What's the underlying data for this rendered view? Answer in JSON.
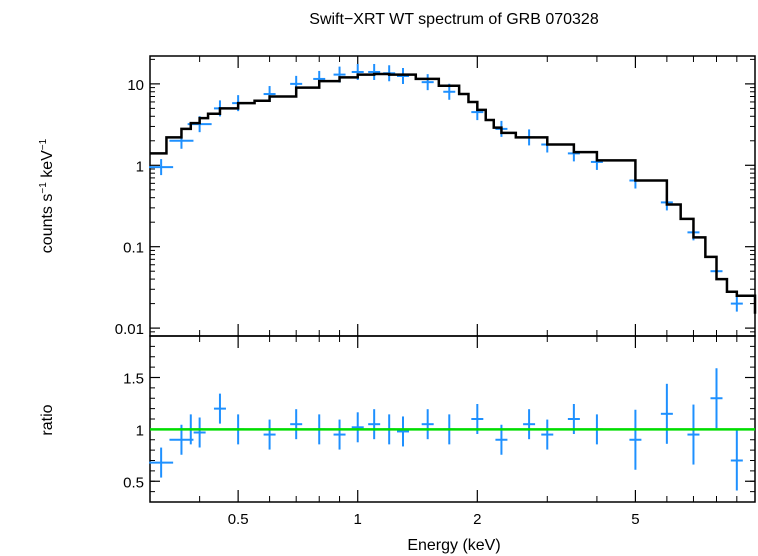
{
  "chart_data": [
    {
      "type": "scatter",
      "panel": "top",
      "title": "Swift−XRT WT spectrum of GRB 070328",
      "ylabel_main": "counts s",
      "ylabel_sup1": "−1",
      "ylabel_mid": " keV",
      "ylabel_sup2": "−1",
      "x_scale": "log",
      "y_scale": "log",
      "xlim": [
        0.3,
        10
      ],
      "ylim": [
        0.008,
        22
      ],
      "y_ticks": [
        "10",
        "1",
        "0.1",
        "0.01"
      ],
      "y_tick_values": [
        10,
        1,
        0.1,
        0.01
      ],
      "series": [
        {
          "kind": "data",
          "color": "#1e90ff",
          "x": [
            0.32,
            0.36,
            0.4,
            0.45,
            0.5,
            0.6,
            0.7,
            0.8,
            0.9,
            1.0,
            1.1,
            1.2,
            1.3,
            1.5,
            1.7,
            2.0,
            2.3,
            2.7,
            3.0,
            3.5,
            4.0,
            5.0,
            6.0,
            7.0,
            8.0,
            9.0
          ],
          "y": [
            0.95,
            2.0,
            3.2,
            5.0,
            5.8,
            7.5,
            10.0,
            11.5,
            13.0,
            14.0,
            14.0,
            13.5,
            12.5,
            10.5,
            8.0,
            4.5,
            2.8,
            2.2,
            1.8,
            1.4,
            1.1,
            0.65,
            0.35,
            0.15,
            0.05,
            0.02
          ]
        },
        {
          "kind": "model",
          "color": "#000000",
          "x": [
            0.3,
            0.33,
            0.36,
            0.38,
            0.4,
            0.42,
            0.45,
            0.5,
            0.55,
            0.6,
            0.7,
            0.8,
            0.9,
            1.0,
            1.1,
            1.2,
            1.4,
            1.6,
            1.8,
            1.9,
            2.0,
            2.1,
            2.2,
            2.3,
            2.5,
            3.0,
            3.5,
            4.0,
            5.0,
            6.0,
            6.5,
            7.0,
            7.5,
            8.0,
            8.5,
            9.0,
            10.0
          ],
          "y": [
            1.4,
            2.2,
            2.8,
            3.3,
            3.8,
            4.3,
            5.0,
            5.8,
            6.2,
            7.0,
            9.0,
            10.8,
            12.0,
            13.0,
            13.2,
            13.0,
            11.5,
            9.5,
            7.5,
            6.0,
            4.8,
            3.6,
            2.9,
            2.5,
            2.2,
            1.8,
            1.45,
            1.15,
            0.65,
            0.33,
            0.22,
            0.13,
            0.075,
            0.04,
            0.028,
            0.025,
            0.015
          ]
        }
      ]
    },
    {
      "type": "scatter",
      "panel": "bottom",
      "ylabel": "ratio",
      "xlabel": "Energy (keV)",
      "x_scale": "log",
      "xlim": [
        0.3,
        10
      ],
      "ylim": [
        0.3,
        1.9
      ],
      "y_ticks": [
        "1.5",
        "1",
        "0.5"
      ],
      "y_tick_values": [
        1.5,
        1,
        0.5
      ],
      "x_ticks": [
        "0.5",
        "1",
        "2",
        "5"
      ],
      "x_tick_values": [
        0.5,
        1,
        2,
        5
      ],
      "reference_line": {
        "y": 1,
        "color": "#00dd00"
      },
      "series": [
        {
          "kind": "data",
          "color": "#1e90ff",
          "x": [
            0.32,
            0.36,
            0.38,
            0.4,
            0.45,
            0.5,
            0.6,
            0.7,
            0.8,
            0.9,
            1.0,
            1.1,
            1.2,
            1.3,
            1.5,
            1.7,
            2.0,
            2.3,
            2.7,
            3.0,
            3.5,
            4.0,
            5.0,
            6.0,
            7.0,
            8.0,
            9.0
          ],
          "y": [
            0.68,
            0.9,
            1.0,
            0.97,
            1.2,
            1.0,
            0.95,
            1.05,
            1.0,
            0.95,
            1.02,
            1.05,
            1.0,
            0.98,
            1.05,
            1.0,
            1.1,
            0.9,
            1.05,
            0.95,
            1.1,
            1.0,
            0.9,
            1.15,
            0.95,
            1.3,
            0.7
          ]
        }
      ]
    }
  ]
}
